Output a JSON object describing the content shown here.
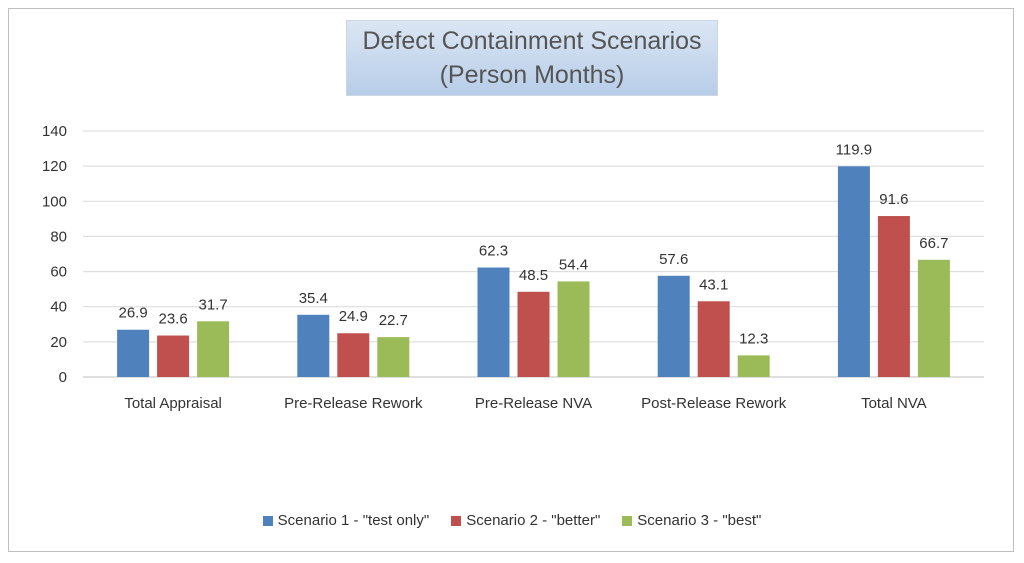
{
  "chart_data": {
    "type": "bar",
    "title": [
      "Defect Containment Scenarios",
      "(Person Months)"
    ],
    "categories": [
      "Total Appraisal",
      "Pre-Release Rework",
      "Pre-Release NVA",
      "Post-Release Rework",
      "Total NVA"
    ],
    "series": [
      {
        "name": "Scenario 1 - \"test only\"",
        "color": "#4f81bd",
        "values": [
          26.9,
          35.4,
          62.3,
          57.6,
          119.9
        ]
      },
      {
        "name": "Scenario 2 - \"better\"",
        "color": "#c0504d",
        "values": [
          23.6,
          24.9,
          48.5,
          43.1,
          91.6
        ]
      },
      {
        "name": "Scenario 3 - \"best\"",
        "color": "#9bbb59",
        "values": [
          31.7,
          22.7,
          54.4,
          12.3,
          66.7
        ]
      }
    ],
    "ylim": [
      0,
      140
    ],
    "yticks": [
      0,
      20,
      40,
      60,
      80,
      100,
      120,
      140
    ],
    "grid": true,
    "legend_position": "bottom",
    "data_labels": true
  }
}
